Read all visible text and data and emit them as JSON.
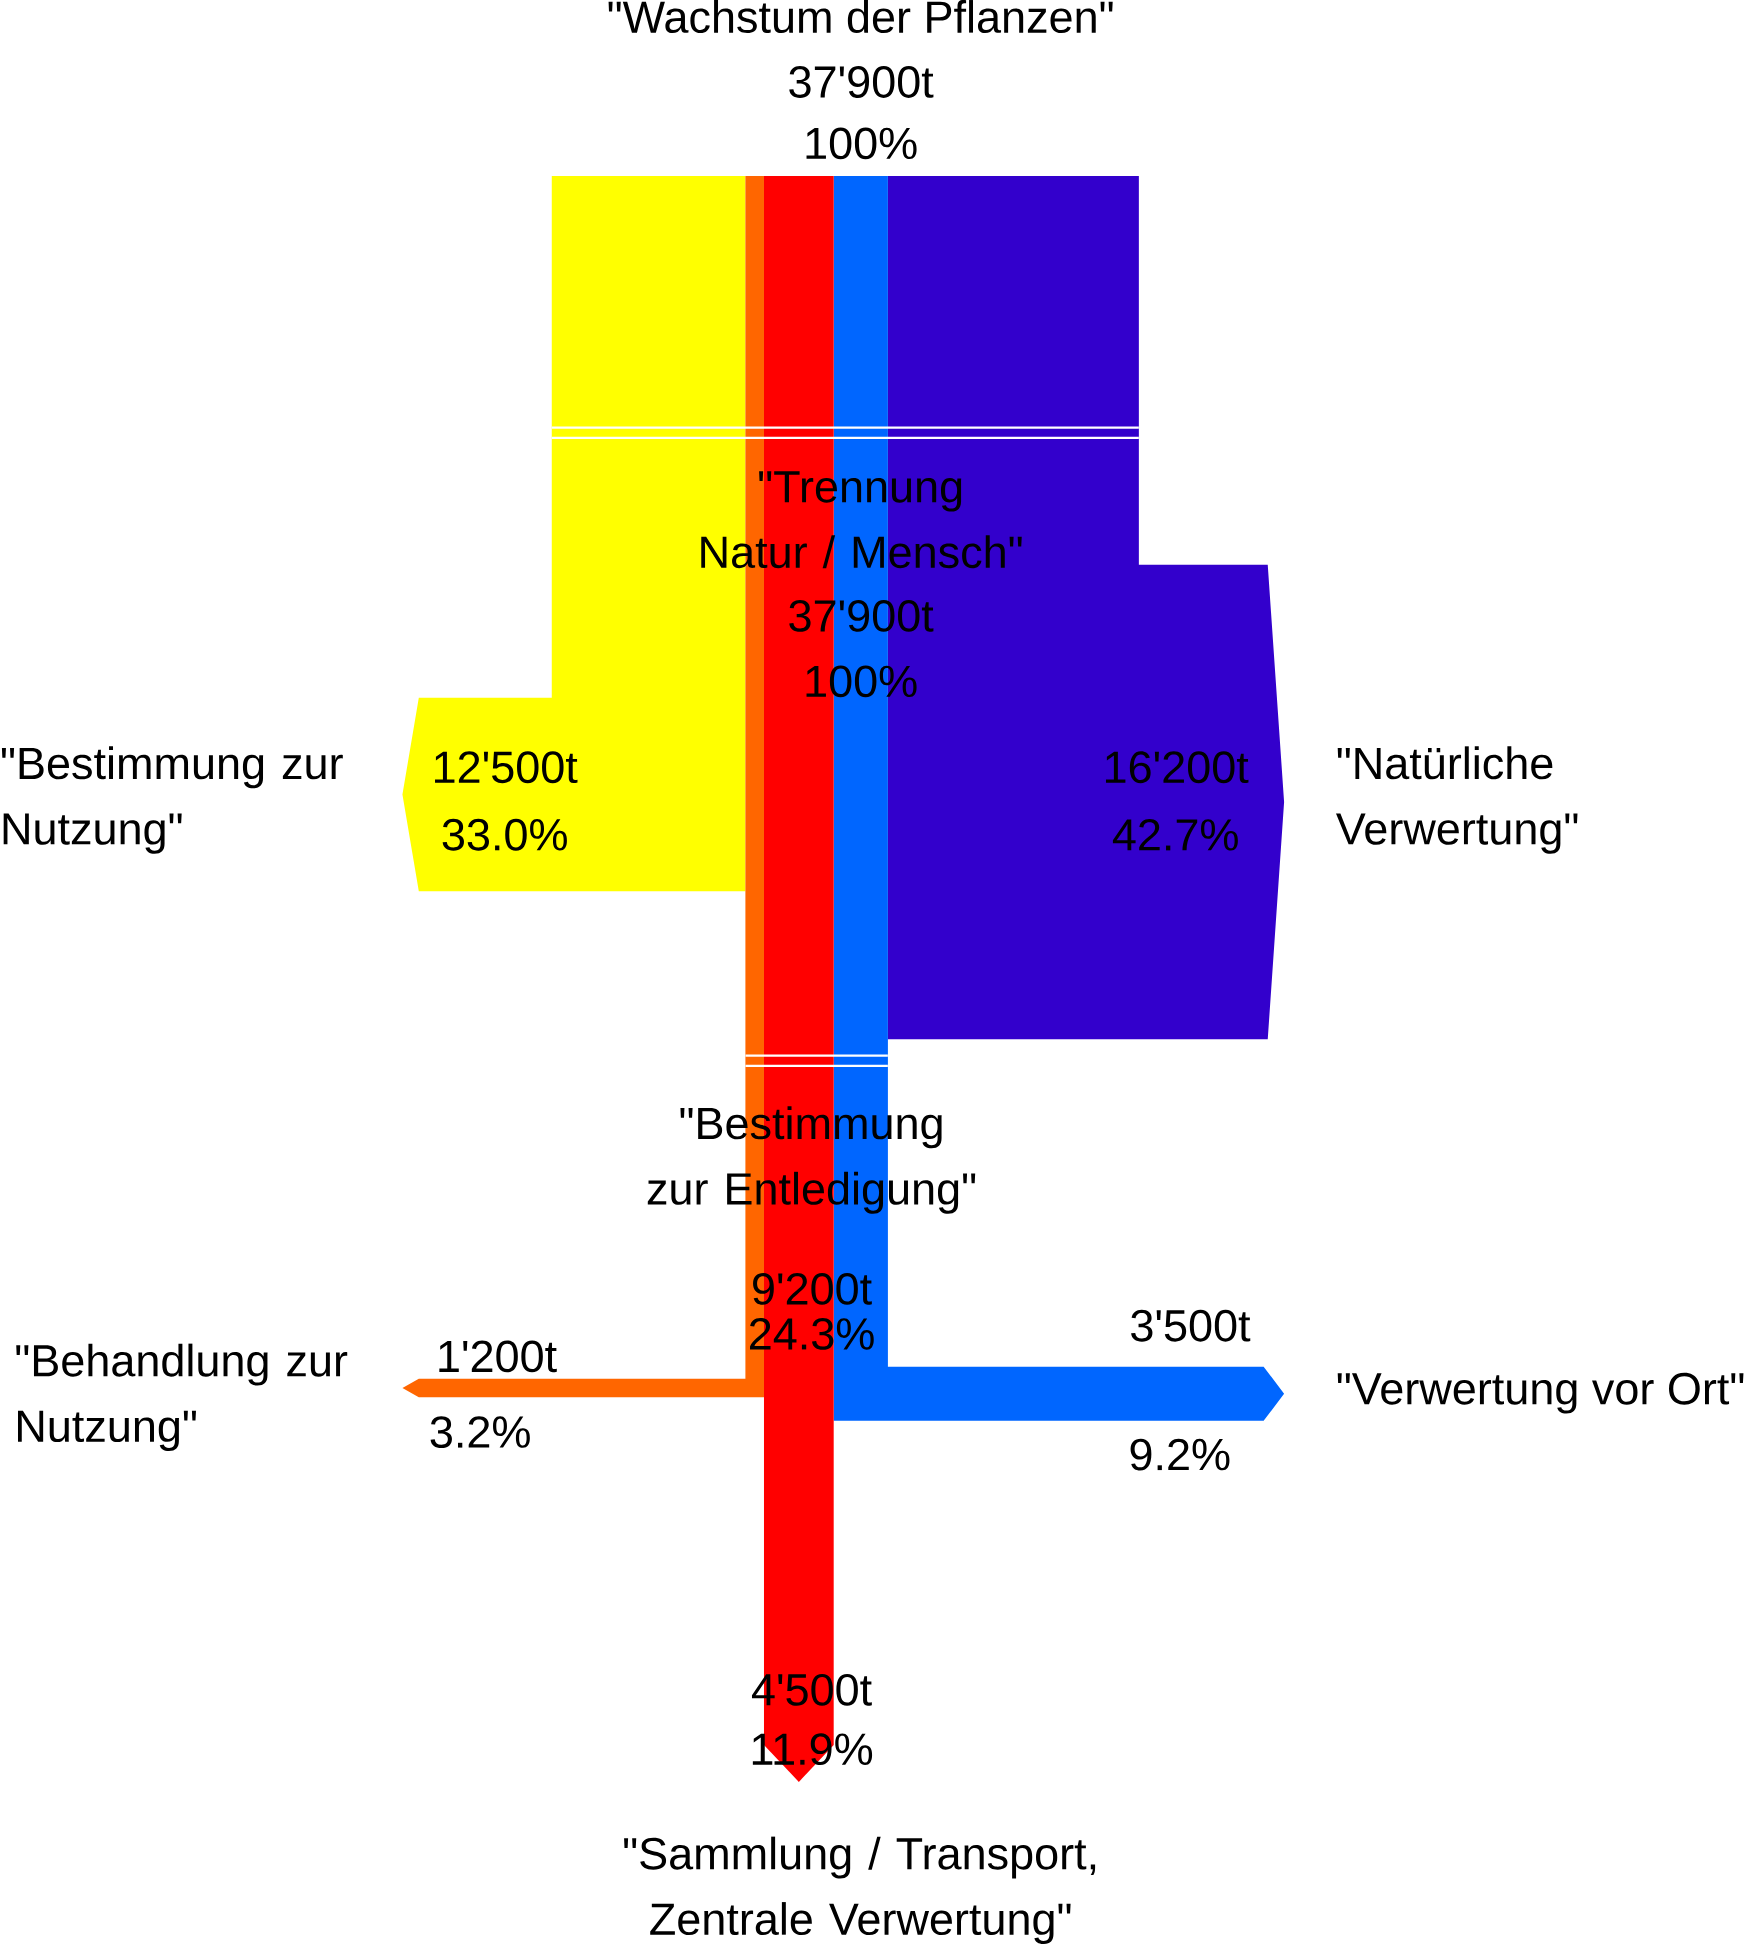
{
  "chart_data": {
    "type": "other",
    "title": "\"Wachstum der Pflanzen\"",
    "categories": [
      "\"Bestimmung zur Nutzung\"",
      "\"Natürliche Verwertung\"",
      "\"Behandlung zur Nutzung\"",
      "\"Verwertung vor Ort\"",
      "\"Sammlung / Transport, Zentrale Verwertung\""
    ],
    "values": [
      12500,
      16200,
      1200,
      3500,
      4500
    ],
    "value_labels": [
      "12'500t",
      "16'200t",
      "1'200t",
      "3'500t",
      "4'500t"
    ],
    "colors": [
      "#ffff00",
      "#3300cc",
      "#ff6600",
      "#0066ff",
      "#ff0000"
    ],
    "annotations": [
      "37'900t",
      "100%",
      "\"Trennung Natur / Mensch\"",
      "37'900t",
      "100%",
      "\"Bestimmung zur Entledigung\"",
      "9'200t",
      "24.3%",
      "33.0%",
      "42.7%",
      "3.2%",
      "9.2%",
      "11.9%"
    ]
  }
}
